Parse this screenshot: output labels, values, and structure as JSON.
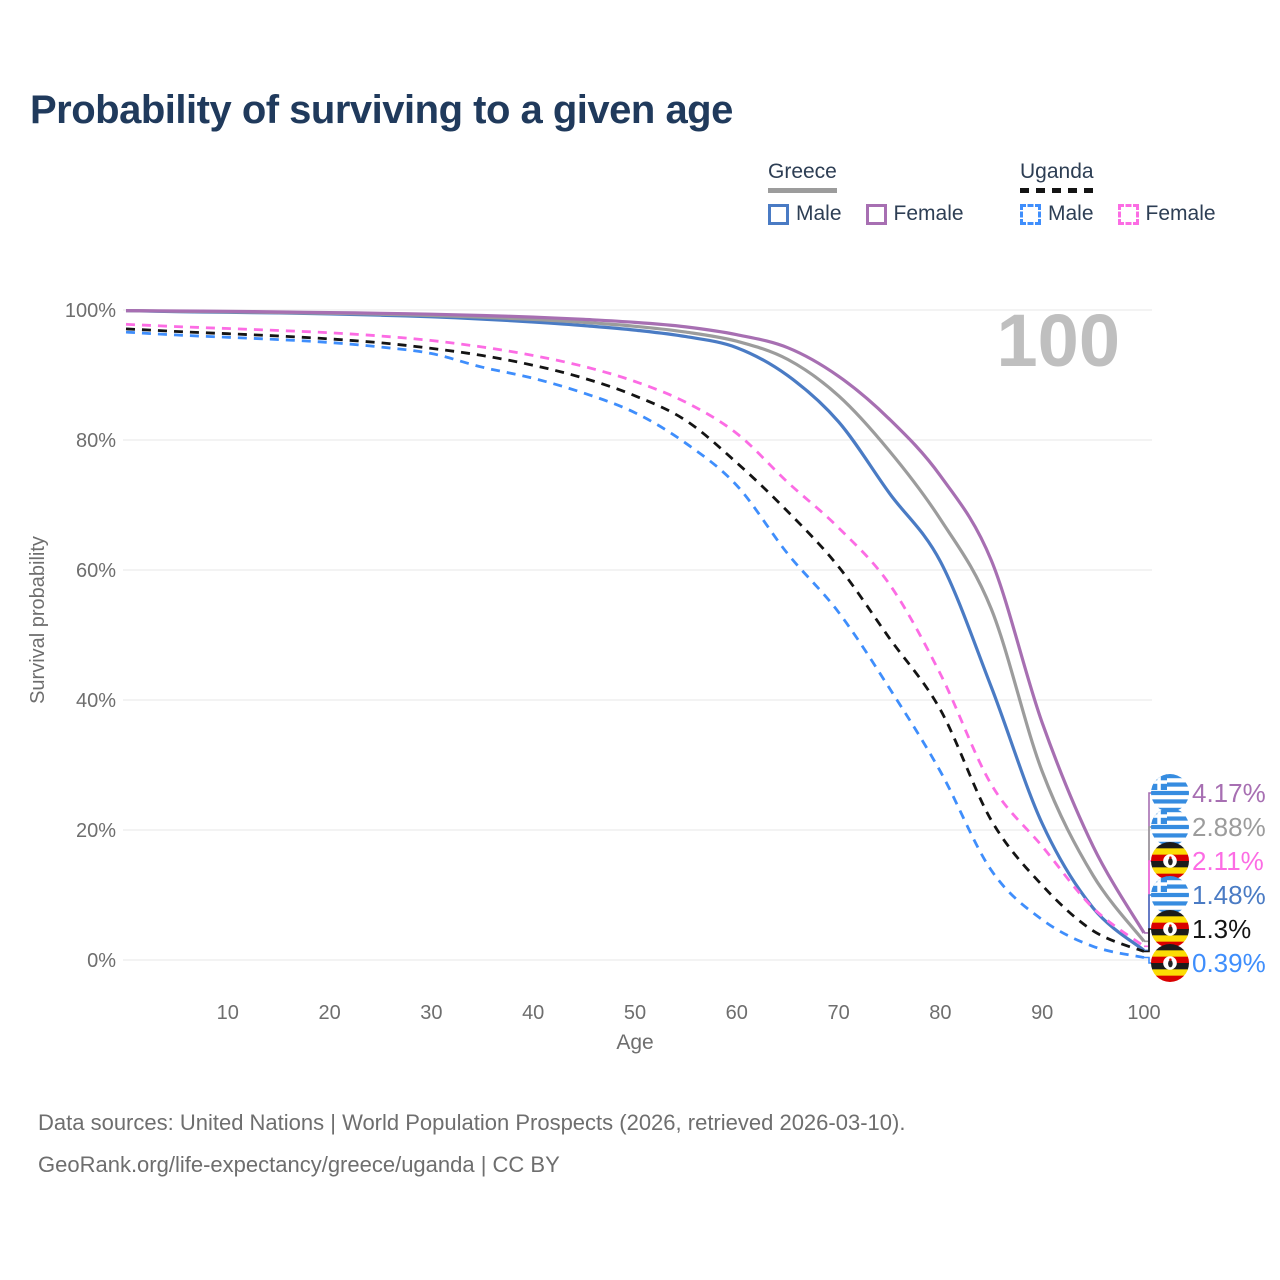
{
  "title": "Probability of surviving to a given age",
  "watermark_age": "100",
  "legend": {
    "groups": [
      {
        "country": "Greece",
        "line_style": "solid",
        "combined_color": "#9c9c9c",
        "items": [
          {
            "label": "Male",
            "color": "#4a7bc4"
          },
          {
            "label": "Female",
            "color": "#a76fb2"
          }
        ]
      },
      {
        "country": "Uganda",
        "line_style": "dashed",
        "combined_color": "#141414",
        "items": [
          {
            "label": "Male",
            "color": "#3f8efc"
          },
          {
            "label": "Female",
            "color": "#fc6ce4"
          }
        ]
      }
    ]
  },
  "chart_data": {
    "type": "line",
    "title": "Probability of surviving to a given age",
    "xlabel": "Age",
    "ylabel": "Survival probability",
    "xlim": [
      0,
      100
    ],
    "ylim": [
      0,
      100
    ],
    "grid": "horizontal",
    "x_ticks": [
      10,
      20,
      30,
      40,
      50,
      60,
      70,
      80,
      90,
      100
    ],
    "y_ticks": [
      "0%",
      "20%",
      "40%",
      "60%",
      "80%",
      "100%"
    ],
    "y_tick_values": [
      0,
      20,
      40,
      60,
      80,
      100
    ],
    "x": [
      0,
      5,
      10,
      15,
      20,
      25,
      30,
      35,
      40,
      45,
      50,
      55,
      60,
      65,
      70,
      75,
      80,
      85,
      90,
      95,
      100
    ],
    "series": [
      {
        "name": "Greece Female",
        "country": "Greece",
        "sex": "Female",
        "style": "solid",
        "color": "#a76fb2",
        "end_label": "4.17%",
        "values": [
          99.9,
          99.85,
          99.8,
          99.7,
          99.6,
          99.5,
          99.35,
          99.15,
          98.9,
          98.55,
          98.1,
          97.4,
          96.2,
          94.2,
          89.8,
          83.2,
          74.5,
          61.5,
          36.5,
          17.5,
          4.17
        ]
      },
      {
        "name": "Greece Both sexes",
        "country": "Greece",
        "sex": "Both",
        "style": "solid",
        "color": "#9c9c9c",
        "end_label": "2.88%",
        "values": [
          99.9,
          99.8,
          99.72,
          99.62,
          99.5,
          99.35,
          99.15,
          98.9,
          98.55,
          98.1,
          97.5,
          96.6,
          95.2,
          92.4,
          86.8,
          78.3,
          67.8,
          54.0,
          29.0,
          13.0,
          2.88
        ]
      },
      {
        "name": "Uganda Female",
        "country": "Uganda",
        "sex": "Female",
        "style": "dashed",
        "color": "#fc6ce4",
        "end_label": "2.11%",
        "values": [
          97.8,
          97.45,
          97.15,
          96.85,
          96.5,
          96.0,
          95.3,
          94.3,
          93.0,
          91.3,
          89.0,
          85.8,
          81.0,
          73.5,
          66.5,
          57.8,
          44.0,
          27.0,
          17.5,
          8.0,
          2.11
        ]
      },
      {
        "name": "Greece Male",
        "country": "Greece",
        "sex": "Male",
        "style": "solid",
        "color": "#4a7bc4",
        "end_label": "1.48%",
        "values": [
          99.9,
          99.75,
          99.65,
          99.55,
          99.4,
          99.2,
          98.95,
          98.6,
          98.15,
          97.6,
          96.9,
          95.9,
          94.2,
          89.9,
          82.8,
          71.8,
          61.3,
          42.0,
          21.0,
          8.0,
          1.48
        ]
      },
      {
        "name": "Uganda Both sexes",
        "country": "Uganda",
        "sex": "Both",
        "style": "dashed",
        "color": "#141414",
        "end_label": "1.3%",
        "values": [
          97.1,
          96.7,
          96.35,
          96.0,
          95.55,
          94.95,
          94.1,
          93.0,
          91.5,
          89.5,
          86.8,
          83.0,
          76.5,
          69.0,
          60.5,
          49.5,
          38.5,
          21.5,
          11.5,
          4.5,
          1.3
        ]
      },
      {
        "name": "Uganda Male",
        "country": "Uganda",
        "sex": "Male",
        "style": "dashed",
        "color": "#3f8efc",
        "end_label": "0.39%",
        "values": [
          96.6,
          96.15,
          95.8,
          95.45,
          95.0,
          94.3,
          93.3,
          91.2,
          89.5,
          87.2,
          84.2,
          79.5,
          73.0,
          62.5,
          53.5,
          41.8,
          29.0,
          13.8,
          6.2,
          2.1,
          0.39
        ]
      }
    ],
    "legend_position": "top-right"
  },
  "footer": {
    "line1": "Data sources: United Nations | World Population Prospects (2026, retrieved 2026-03-10).",
    "line2": "GeoRank.org/life-expectancy/greece/uganda | CC BY"
  }
}
